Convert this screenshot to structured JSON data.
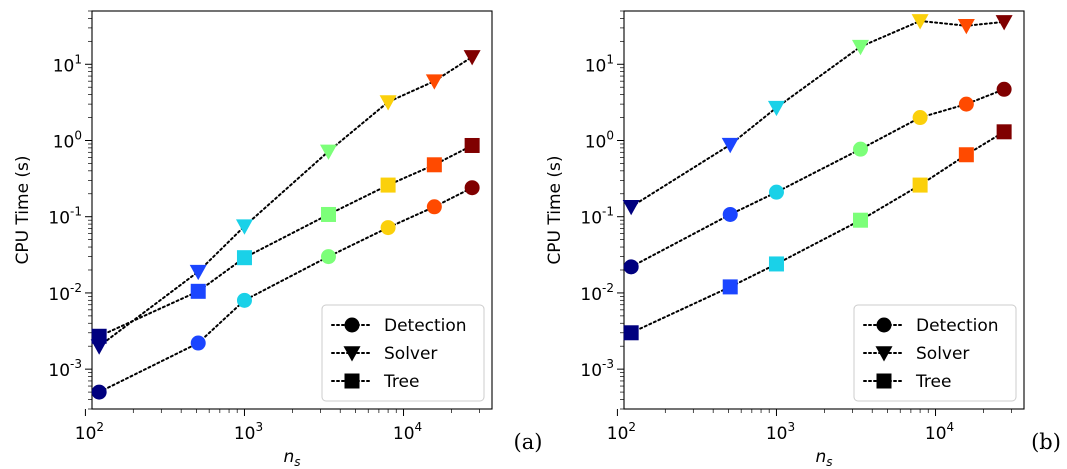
{
  "colors": {
    "marker_colormap": [
      "#00007f",
      "#1b45ff",
      "#1ad1e8",
      "#7cff79",
      "#fbd00b",
      "#ff4a00",
      "#800000"
    ],
    "line": "#000000"
  },
  "chart_data": [
    {
      "type": "scatter",
      "panel_label": "(a)",
      "xlabel": "n_s",
      "ylabel": "CPU Time (s)",
      "xscale": "log",
      "yscale": "log",
      "xlim": [
        110,
        36000
      ],
      "ylim": [
        0.0003,
        50
      ],
      "x_ticks": [
        {
          "base": "10",
          "exp": "2"
        },
        {
          "base": "10",
          "exp": "3"
        },
        {
          "base": "10",
          "exp": "4"
        }
      ],
      "y_ticks": [
        {
          "base": "10",
          "exp": "-3"
        },
        {
          "base": "10",
          "exp": "-2"
        },
        {
          "base": "10",
          "exp": "-1"
        },
        {
          "base": "10",
          "exp": "0"
        },
        {
          "base": "10",
          "exp": "1"
        }
      ],
      "legend": {
        "position": "lower right",
        "entries": [
          "Detection",
          "Solver",
          "Tree"
        ]
      },
      "x": [
        122,
        512,
        1000,
        3375,
        8000,
        15625,
        27000
      ],
      "series": [
        {
          "name": "Detection",
          "marker": "circle",
          "values": [
            0.0005,
            0.0022,
            0.008,
            0.03,
            0.072,
            0.135,
            0.24
          ]
        },
        {
          "name": "Solver",
          "marker": "triangle-down",
          "values": [
            0.002,
            0.019,
            0.075,
            0.72,
            3.2,
            6.0,
            12.5
          ]
        },
        {
          "name": "Tree",
          "marker": "square",
          "values": [
            0.0027,
            0.0105,
            0.029,
            0.107,
            0.26,
            0.48,
            0.86
          ]
        }
      ]
    },
    {
      "type": "scatter",
      "panel_label": "(b)",
      "xlabel": "n_s",
      "ylabel": "CPU Time (s)",
      "xscale": "log",
      "yscale": "log",
      "xlim": [
        110,
        36000
      ],
      "ylim": [
        0.0003,
        50
      ],
      "x_ticks": [
        {
          "base": "10",
          "exp": "2"
        },
        {
          "base": "10",
          "exp": "3"
        },
        {
          "base": "10",
          "exp": "4"
        }
      ],
      "y_ticks": [
        {
          "base": "10",
          "exp": "-3"
        },
        {
          "base": "10",
          "exp": "-2"
        },
        {
          "base": "10",
          "exp": "-1"
        },
        {
          "base": "10",
          "exp": "0"
        },
        {
          "base": "10",
          "exp": "1"
        }
      ],
      "legend": {
        "position": "lower right",
        "entries": [
          "Detection",
          "Solver",
          "Tree"
        ]
      },
      "x": [
        122,
        512,
        1000,
        3375,
        8000,
        15625,
        27000
      ],
      "series": [
        {
          "name": "Detection",
          "marker": "circle",
          "values": [
            0.022,
            0.107,
            0.21,
            0.77,
            2.0,
            3.0,
            4.7
          ]
        },
        {
          "name": "Solver",
          "marker": "triangle-down",
          "values": [
            0.135,
            0.88,
            2.7,
            17.0,
            37.0,
            32.0,
            36.0
          ]
        },
        {
          "name": "Tree",
          "marker": "square",
          "values": [
            0.003,
            0.012,
            0.024,
            0.09,
            0.26,
            0.65,
            1.3
          ]
        }
      ]
    }
  ]
}
